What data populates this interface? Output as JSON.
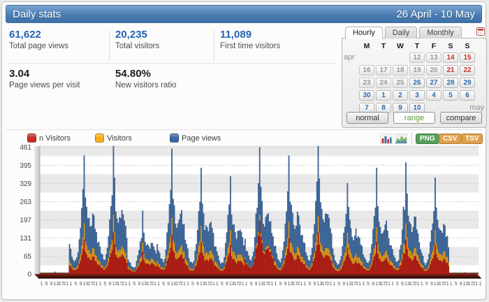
{
  "page": {
    "title": "Daily stats",
    "date_range": "26 April - 10 May"
  },
  "stats": [
    {
      "value": "61,622",
      "label": "Total page views"
    },
    {
      "value": "20,235",
      "label": "Total visitors"
    },
    {
      "value": "11,089",
      "label": "First time visitors"
    },
    {
      "value": "3.04",
      "label": "Page views per visit"
    },
    {
      "value": "54.80%",
      "label": "New visitors ratio"
    }
  ],
  "calendar": {
    "tabs": [
      {
        "label": "Hourly",
        "active": true
      },
      {
        "label": "Daily",
        "active": false
      },
      {
        "label": "Monthly",
        "active": false
      }
    ],
    "weekdays": [
      "M",
      "T",
      "W",
      "T",
      "F",
      "S",
      "S"
    ],
    "rows": [
      {
        "left_label": "apr",
        "right_label": "",
        "cells": [
          {
            "day": ""
          },
          {
            "day": ""
          },
          {
            "day": ""
          },
          {
            "day": "12",
            "state": "past"
          },
          {
            "day": "13",
            "state": "past"
          },
          {
            "day": "14",
            "state": "weekend"
          },
          {
            "day": "15",
            "state": "weekend"
          }
        ]
      },
      {
        "left_label": "",
        "right_label": "",
        "cells": [
          {
            "day": "16",
            "state": "past"
          },
          {
            "day": "17",
            "state": "past"
          },
          {
            "day": "18",
            "state": "past"
          },
          {
            "day": "19",
            "state": "past"
          },
          {
            "day": "20",
            "state": "past"
          },
          {
            "day": "21",
            "state": "weekend"
          },
          {
            "day": "22",
            "state": "weekend"
          }
        ]
      },
      {
        "left_label": "",
        "right_label": "",
        "cells": [
          {
            "day": "23",
            "state": "past"
          },
          {
            "day": "24",
            "state": "past"
          },
          {
            "day": "25",
            "state": "past"
          },
          {
            "day": "26",
            "state": "selected"
          },
          {
            "day": "27",
            "state": "selected"
          },
          {
            "day": "28",
            "state": "selected"
          },
          {
            "day": "29",
            "state": "selected"
          }
        ]
      },
      {
        "left_label": "",
        "right_label": "",
        "cells": [
          {
            "day": "30",
            "state": "selected"
          },
          {
            "day": "1",
            "state": "selected"
          },
          {
            "day": "2",
            "state": "selected"
          },
          {
            "day": "3",
            "state": "selected"
          },
          {
            "day": "4",
            "state": "selected"
          },
          {
            "day": "5",
            "state": "selected"
          },
          {
            "day": "6",
            "state": "selected"
          }
        ]
      },
      {
        "left_label": "",
        "right_label": "may",
        "cells": [
          {
            "day": "7",
            "state": "selected"
          },
          {
            "day": "8",
            "state": "selected"
          },
          {
            "day": "9",
            "state": "selected"
          },
          {
            "day": "10",
            "state": "selected"
          },
          {
            "day": ""
          },
          {
            "day": ""
          },
          {
            "day": ""
          }
        ]
      }
    ],
    "buttons": [
      {
        "label": "normal",
        "active": false
      },
      {
        "label": "range",
        "active": true
      },
      {
        "label": "compare",
        "active": false
      }
    ]
  },
  "legend": [
    {
      "label": "n Visitors",
      "color": "#cb2a25"
    },
    {
      "label": "Visitors",
      "color": "#f5af1d"
    },
    {
      "label": "Page views",
      "color": "#3a69a5"
    }
  ],
  "toolbar": {
    "chart_type_icons": [
      "column-chart-icon",
      "area-chart-icon"
    ],
    "export_buttons": [
      {
        "label": "PNG",
        "color": "#55a058"
      },
      {
        "label": "CSV",
        "color": "#dfa04b"
      },
      {
        "label": "TSV",
        "color": "#dfa04b"
      }
    ]
  },
  "chart": {
    "y_ticks": [
      461,
      395,
      329,
      263,
      197,
      131,
      65,
      0
    ],
    "x_hour_labels": [
      1,
      5,
      9,
      13,
      17,
      21
    ],
    "trailing_hour_label": "1",
    "num_days": 15,
    "chart_data": {
      "type": "bar",
      "x_unit": "hour of day, 26 April - 10 May",
      "ylim": [
        0,
        500
      ],
      "grid": "alternating bands, dashed lines",
      "legend_position": "top-left",
      "hourly_shape": [
        0.3,
        0.24,
        0.19,
        0.15,
        0.12,
        0.12,
        0.15,
        0.22,
        0.34,
        0.48,
        0.62,
        0.72,
        1.0,
        0.74,
        0.6,
        0.52,
        0.48,
        0.46,
        0.5,
        0.55,
        0.52,
        0.46,
        0.4,
        0.33
      ],
      "series": [
        {
          "name": "Page views",
          "color": "#3e6da6",
          "edge": "#1d3c63",
          "daily_peaks": [
            8,
            430,
            495,
            230,
            455,
            385,
            355,
            460,
            430,
            485,
            330,
            385,
            405,
            350,
            6
          ]
        },
        {
          "name": "Visitors",
          "color": "#f3a81f",
          "edge": "#9c6108",
          "daily_peaks": [
            5,
            185,
            215,
            115,
            205,
            175,
            160,
            215,
            190,
            210,
            150,
            170,
            185,
            160,
            4
          ]
        },
        {
          "name": "n Visitors",
          "color": "#c6201b",
          "edge": "#6e0c08",
          "daily_peaks": [
            4,
            125,
            150,
            80,
            140,
            115,
            105,
            205,
            130,
            150,
            95,
            115,
            125,
            105,
            3
          ]
        }
      ]
    }
  }
}
